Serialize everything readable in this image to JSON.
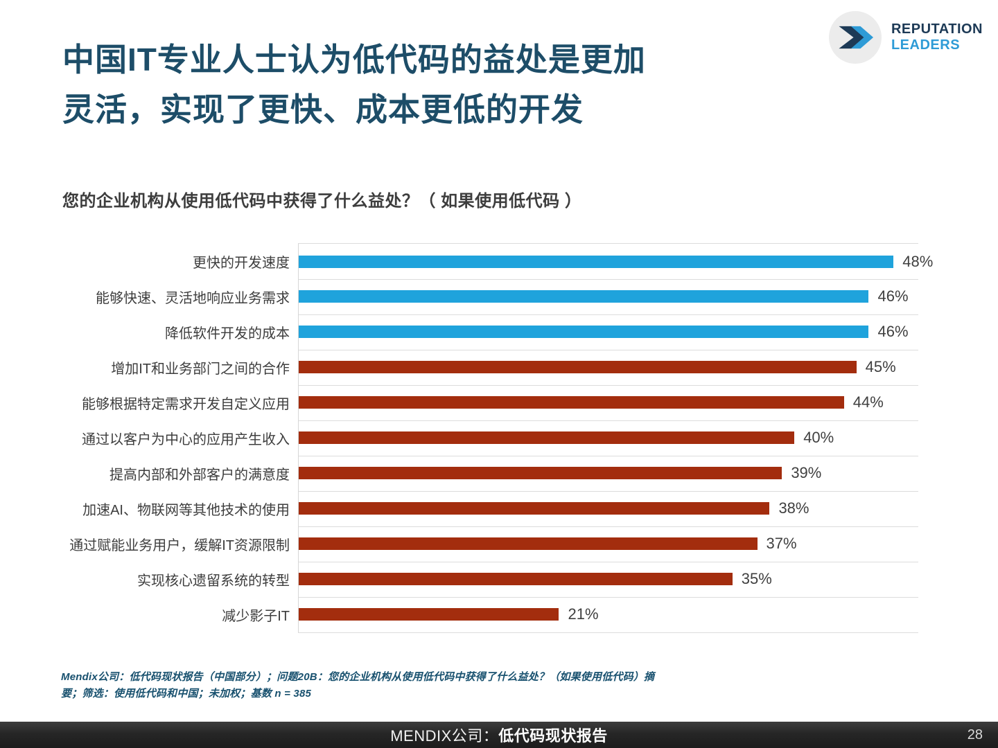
{
  "title": {
    "line1": "中国IT专业人士认为低代码的益处是更加",
    "line2": "灵活，实现了更快、成本更低的开发",
    "color": "#1d4d68"
  },
  "logo": {
    "line1": "REPUTATION",
    "line2": "LEADERS",
    "dark_color": "#1d3a56",
    "light_color": "#2e9bd6"
  },
  "question": "您的企业机构从使用低代码中获得了什么益处？（ 如果使用低代码 ）",
  "chart_data": {
    "type": "bar",
    "orientation": "horizontal",
    "xlim": [
      0,
      50
    ],
    "value_suffix": "%",
    "grid": "row-separators",
    "legend": "none",
    "colors": {
      "highlight": "#1fa3dc",
      "base": "#a32d0e"
    },
    "items": [
      {
        "label": "更快的开发速度",
        "value": 48,
        "color_key": "highlight"
      },
      {
        "label": "能够快速、灵活地响应业务需求",
        "value": 46,
        "color_key": "highlight"
      },
      {
        "label": "降低软件开发的成本",
        "value": 46,
        "color_key": "highlight"
      },
      {
        "label": "增加IT和业务部门之间的合作",
        "value": 45,
        "color_key": "base"
      },
      {
        "label": "能够根据特定需求开发自定义应用",
        "value": 44,
        "color_key": "base"
      },
      {
        "label": "通过以客户为中心的应用产生收入",
        "value": 40,
        "color_key": "base"
      },
      {
        "label": "提高内部和外部客户的满意度",
        "value": 39,
        "color_key": "base"
      },
      {
        "label": "加速AI、物联网等其他技术的使用",
        "value": 38,
        "color_key": "base"
      },
      {
        "label": "通过赋能业务用户，缓解IT资源限制",
        "value": 37,
        "color_key": "base"
      },
      {
        "label": "实现核心遗留系统的转型",
        "value": 35,
        "color_key": "base"
      },
      {
        "label": "减少影子IT",
        "value": 21,
        "color_key": "base"
      }
    ]
  },
  "footnote": "Mendix公司：低代码现状报告（中国部分）；问题20B：您的企业机构从使用低代码中获得了什么益处？（如果使用低代码）摘要；筛选：使用低代码和中国；未加权；基数 n = 385",
  "footer": {
    "brand": "MENDIX公司：",
    "report": "低代码现状报告",
    "page": "28"
  }
}
